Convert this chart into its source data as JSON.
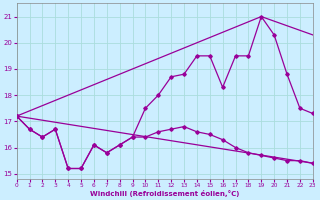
{
  "xlabel": "Windchill (Refroidissement éolien,°C)",
  "background_color": "#cceeff",
  "grid_color": "#aadddd",
  "line_color": "#990099",
  "x_hours": [
    0,
    1,
    2,
    3,
    4,
    5,
    6,
    7,
    8,
    9,
    10,
    11,
    12,
    13,
    14,
    15,
    16,
    17,
    18,
    19,
    20,
    21,
    22,
    23
  ],
  "windchill_line": [
    17.2,
    16.7,
    16.4,
    16.7,
    15.2,
    15.2,
    16.1,
    15.8,
    16.1,
    16.4,
    17.5,
    18.0,
    18.7,
    18.8,
    19.5,
    19.5,
    18.3,
    19.5,
    19.5,
    21.0,
    20.3,
    18.8,
    17.5,
    17.3
  ],
  "temp_line": [
    17.2,
    16.7,
    16.4,
    16.7,
    15.2,
    15.2,
    16.1,
    15.8,
    16.1,
    16.4,
    16.4,
    16.6,
    16.7,
    16.8,
    16.6,
    16.5,
    16.3,
    16.0,
    15.8,
    15.7,
    15.6,
    15.5,
    15.5,
    15.4
  ],
  "straight_line1": [
    [
      0,
      17.2
    ],
    [
      23,
      15.4
    ]
  ],
  "straight_line2": [
    [
      0,
      17.2
    ],
    [
      19,
      21.0
    ],
    [
      23,
      20.3
    ]
  ],
  "ylim": [
    14.8,
    21.5
  ],
  "xlim": [
    0,
    23
  ],
  "yticks": [
    15,
    16,
    17,
    18,
    19,
    20,
    21
  ],
  "xticks": [
    0,
    1,
    2,
    3,
    4,
    5,
    6,
    7,
    8,
    9,
    10,
    11,
    12,
    13,
    14,
    15,
    16,
    17,
    18,
    19,
    20,
    21,
    22,
    23
  ]
}
